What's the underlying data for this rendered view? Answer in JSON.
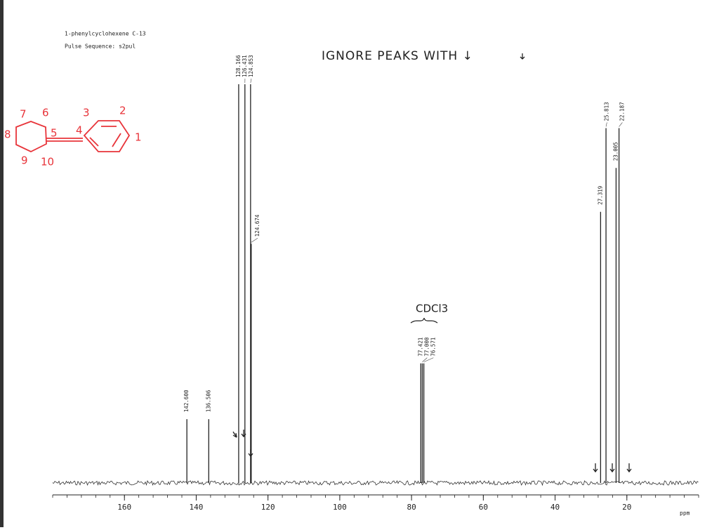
{
  "chart_data": {
    "type": "spectrum",
    "title": "1-phenylcyclohexene C-13",
    "subtitle": "Pulse Sequence: s2pul",
    "annotation": "IGNORE PEAKS WITH ↓",
    "solvent_label": "CDCl3",
    "x_label": "ppm",
    "structure_labels": [
      "1",
      "2",
      "3",
      "4",
      "5",
      "6",
      "7",
      "8",
      "9",
      "10"
    ],
    "xlim": [
      180,
      0
    ],
    "xticks": [
      160,
      140,
      120,
      100,
      80,
      60,
      40,
      20
    ],
    "ylim": [
      0,
      100
    ],
    "color": "#222222",
    "x": [
      142.6,
      136.506,
      128.166,
      126.431,
      124.853,
      124.674,
      77.421,
      77,
      76.571,
      27.319,
      25.813,
      23.005,
      22.187
    ],
    "peak_labels": [
      "142.600",
      "136.506",
      "128.166",
      "126.431",
      "124.853",
      "124.674",
      "77.421",
      "77.000",
      "76.571",
      "27.319",
      "25.813",
      "23.005",
      "22.187"
    ],
    "values": [
      16,
      16,
      100,
      100,
      100,
      60,
      30,
      30,
      30,
      68,
      89,
      79,
      89
    ]
  }
}
